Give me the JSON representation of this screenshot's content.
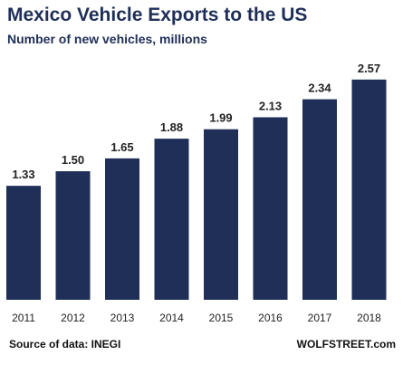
{
  "chart_data": {
    "type": "bar",
    "title": "Mexico Vehicle Exports to the US",
    "subtitle": "Number of new vehicles, millions",
    "categories": [
      "2011",
      "2012",
      "2013",
      "2014",
      "2015",
      "2016",
      "2017",
      "2018"
    ],
    "values": [
      1.33,
      1.5,
      1.65,
      1.88,
      1.99,
      2.13,
      2.34,
      2.57
    ],
    "value_labels": [
      "1.33",
      "1.50",
      "1.65",
      "1.88",
      "1.99",
      "2.13",
      "2.34",
      "2.57"
    ],
    "xlabel": "",
    "ylabel": "",
    "ylim": [
      0,
      2.6
    ],
    "grid": false,
    "bar_color": "#1f2f57"
  },
  "footer": {
    "source": "Source of data: INEGI",
    "credit": "WOLFSTREET.com"
  }
}
